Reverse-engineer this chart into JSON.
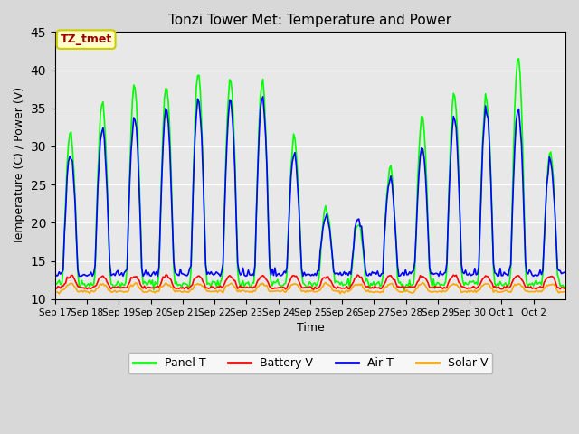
{
  "title": "Tonzi Tower Met: Temperature and Power",
  "xlabel": "Time",
  "ylabel": "Temperature (C) / Power (V)",
  "ylim": [
    10,
    45
  ],
  "annotation": "TZ_tmet",
  "annotation_fc": "#ffffcc",
  "annotation_ec": "#cccc00",
  "annotation_tc": "#990000",
  "colors": {
    "Panel T": "#00ff00",
    "Battery V": "#ff0000",
    "Air T": "#0000ff",
    "Solar V": "#ffa500"
  },
  "x_tick_labels": [
    "Sep 17",
    "Sep 18",
    "Sep 19",
    "Sep 20",
    "Sep 21",
    "Sep 22",
    "Sep 23",
    "Sep 24",
    "Sep 25",
    "Sep 26",
    "Sep 27",
    "Sep 28",
    "Sep 29",
    "Sep 30",
    "Oct 1",
    "Oct 2"
  ],
  "panel_day_peaks": [
    32,
    36,
    38,
    38,
    39.5,
    39,
    38.5,
    31,
    22,
    20,
    27,
    34,
    37,
    36.5,
    42,
    29
  ],
  "air_day_peaks": [
    29,
    32,
    34,
    35,
    36,
    36,
    36.5,
    29,
    21,
    20.5,
    26,
    30,
    34,
    35,
    35,
    28
  ],
  "n_days": 16,
  "hours_per_day": 24,
  "legend_labels": [
    "Panel T",
    "Battery V",
    "Air T",
    "Solar V"
  ]
}
